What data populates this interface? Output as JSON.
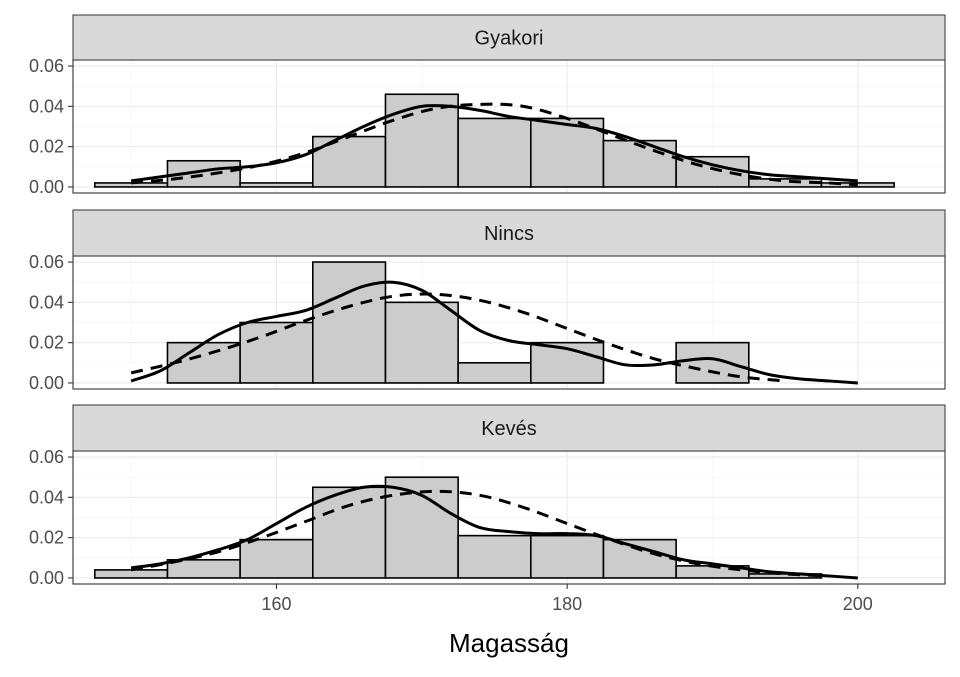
{
  "chart_data": {
    "type": "histogram",
    "xlabel": "Magasság",
    "ylabel": "",
    "xlim": [
      146,
      206
    ],
    "ylim": [
      -0.003,
      0.063
    ],
    "x_ticks": [
      160,
      180,
      200
    ],
    "y_ticks": [
      0.0,
      0.02,
      0.04,
      0.06
    ],
    "y_tick_labels": [
      "0.00",
      "0.02",
      "0.04",
      "0.06"
    ],
    "x_tick_labels": [
      "160",
      "180",
      "200"
    ],
    "grid": true,
    "bin_edges": [
      147.5,
      152.5,
      157.5,
      162.5,
      167.5,
      172.5,
      177.5,
      182.5,
      187.5,
      192.5,
      197.5,
      202.5
    ],
    "series": [
      {
        "name": "Gyakori",
        "bars": [
          0.002,
          0.013,
          0.002,
          0.025,
          0.046,
          0.034,
          0.034,
          0.023,
          0.015,
          0.004,
          0.002
        ],
        "density_x": [
          150,
          152,
          154,
          156,
          158,
          160,
          162,
          164,
          166,
          168,
          170,
          172,
          174,
          176,
          178,
          180,
          182,
          184,
          186,
          188,
          190,
          192,
          194,
          196,
          198,
          200
        ],
        "density_y": [
          0.003,
          0.005,
          0.007,
          0.009,
          0.01,
          0.012,
          0.016,
          0.023,
          0.03,
          0.036,
          0.04,
          0.04,
          0.038,
          0.035,
          0.033,
          0.031,
          0.029,
          0.025,
          0.02,
          0.015,
          0.011,
          0.008,
          0.006,
          0.005,
          0.004,
          0.003
        ],
        "normal_x": [
          150,
          153,
          156,
          159,
          162,
          165,
          168,
          171,
          174,
          177,
          180,
          183,
          186,
          189,
          192,
          195,
          198,
          200
        ],
        "normal_y": [
          0.002,
          0.004,
          0.007,
          0.011,
          0.017,
          0.025,
          0.033,
          0.039,
          0.041,
          0.04,
          0.034,
          0.026,
          0.018,
          0.011,
          0.006,
          0.003,
          0.002,
          0.001
        ]
      },
      {
        "name": "Nincs",
        "bars": [
          0.0,
          0.02,
          0.03,
          0.06,
          0.04,
          0.01,
          0.02,
          0.0,
          0.02,
          0.0,
          0.0
        ],
        "density_x": [
          150,
          152,
          154,
          156,
          158,
          160,
          162,
          164,
          166,
          168,
          170,
          172,
          174,
          176,
          178,
          180,
          182,
          184,
          186,
          188,
          190,
          192,
          194,
          196,
          198,
          200
        ],
        "density_y": [
          0.001,
          0.006,
          0.015,
          0.024,
          0.03,
          0.033,
          0.036,
          0.042,
          0.048,
          0.05,
          0.046,
          0.036,
          0.026,
          0.021,
          0.019,
          0.017,
          0.013,
          0.009,
          0.009,
          0.011,
          0.012,
          0.008,
          0.004,
          0.002,
          0.001,
          0.0
        ],
        "normal_x": [
          150,
          153,
          156,
          159,
          162,
          165,
          168,
          171,
          174,
          177,
          180,
          183,
          186,
          189,
          192,
          195
        ],
        "normal_y": [
          0.005,
          0.01,
          0.016,
          0.023,
          0.031,
          0.038,
          0.043,
          0.044,
          0.041,
          0.035,
          0.027,
          0.019,
          0.012,
          0.007,
          0.003,
          0.001
        ]
      },
      {
        "name": "Kevés",
        "bars": [
          0.004,
          0.009,
          0.019,
          0.045,
          0.05,
          0.021,
          0.021,
          0.019,
          0.006,
          0.002,
          0.0
        ],
        "density_x": [
          150,
          152,
          154,
          156,
          158,
          160,
          162,
          164,
          166,
          168,
          170,
          172,
          174,
          176,
          178,
          180,
          182,
          184,
          186,
          188,
          190,
          192,
          194,
          196,
          198,
          200
        ],
        "density_y": [
          0.005,
          0.007,
          0.01,
          0.014,
          0.019,
          0.027,
          0.035,
          0.041,
          0.045,
          0.045,
          0.041,
          0.032,
          0.025,
          0.023,
          0.022,
          0.022,
          0.021,
          0.017,
          0.013,
          0.009,
          0.007,
          0.005,
          0.003,
          0.002,
          0.001,
          0.0
        ],
        "normal_x": [
          150,
          153,
          156,
          159,
          162,
          165,
          168,
          171,
          174,
          177,
          180,
          183,
          186,
          189,
          192,
          195,
          198
        ],
        "normal_y": [
          0.004,
          0.008,
          0.013,
          0.02,
          0.028,
          0.036,
          0.041,
          0.043,
          0.041,
          0.035,
          0.027,
          0.019,
          0.012,
          0.007,
          0.004,
          0.002,
          0.001
        ]
      }
    ]
  }
}
